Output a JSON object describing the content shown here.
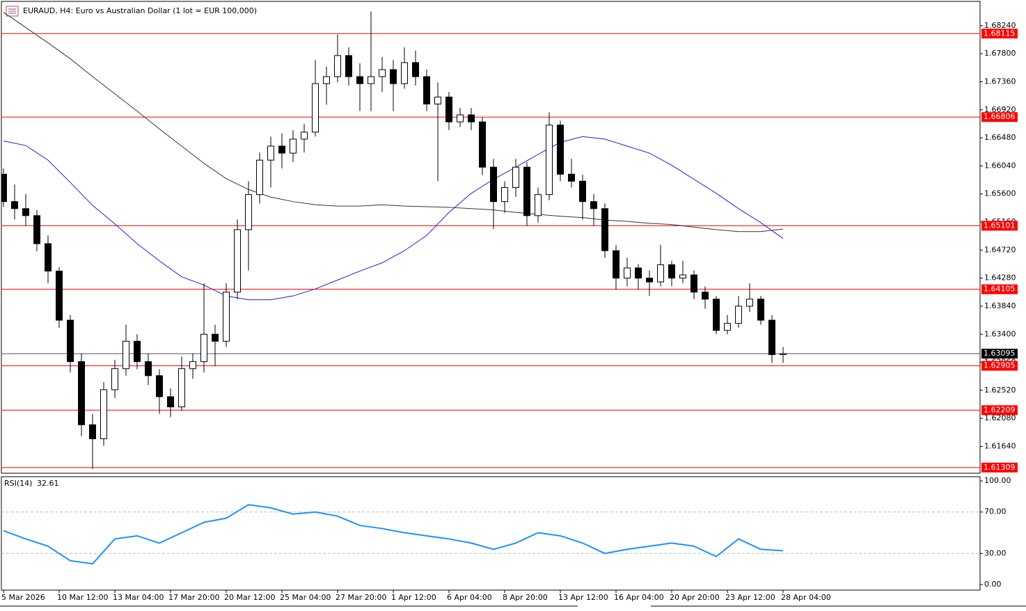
{
  "chart_data": {
    "type": "candlestick",
    "title": "EURAUD, H4:  Euro vs Australian Dollar (1 lot = EUR 100,000)",
    "ylim": [
      1.6122,
      1.6862
    ],
    "yticks": [
      {
        "value": 1.6824,
        "label": "1.68240"
      },
      {
        "value": 1.678,
        "label": "1.67800"
      },
      {
        "value": 1.6736,
        "label": "1.67360"
      },
      {
        "value": 1.6692,
        "label": "1.66920"
      },
      {
        "value": 1.6648,
        "label": "1.66480"
      },
      {
        "value": 1.6604,
        "label": "1.66040"
      },
      {
        "value": 1.656,
        "label": "1.65600"
      },
      {
        "value": 1.6516,
        "label": "1.65160"
      },
      {
        "value": 1.6472,
        "label": "1.64720"
      },
      {
        "value": 1.6428,
        "label": "1.64280"
      },
      {
        "value": 1.6384,
        "label": "1.63840"
      },
      {
        "value": 1.634,
        "label": "1.63400"
      },
      {
        "value": 1.6296,
        "label": "1.62960"
      },
      {
        "value": 1.6252,
        "label": "1.62520"
      },
      {
        "value": 1.6208,
        "label": "1.62080"
      },
      {
        "value": 1.6164,
        "label": "1.61640"
      }
    ],
    "xticks": [
      {
        "value": 0,
        "label": "5 Mar 2026"
      },
      {
        "value": 5,
        "label": "10 Mar 12:00"
      },
      {
        "value": 10,
        "label": "13 Mar 04:00"
      },
      {
        "value": 15,
        "label": "17 Mar 20:00"
      },
      {
        "value": 20,
        "label": "20 Mar 12:00"
      },
      {
        "value": 25,
        "label": "25 Mar 04:00"
      },
      {
        "value": 30,
        "label": "27 Mar 20:00"
      },
      {
        "value": 35,
        "label": "1 Apr 12:00"
      },
      {
        "value": 40,
        "label": "6 Apr 04:00"
      },
      {
        "value": 45,
        "label": "8 Apr 20:00"
      },
      {
        "value": 50,
        "label": "13 Apr 12:00"
      },
      {
        "value": 55,
        "label": "16 Apr 04:00"
      },
      {
        "value": 60,
        "label": "20 Apr 20:00"
      },
      {
        "value": 65,
        "label": "23 Apr 12:00"
      },
      {
        "value": 70,
        "label": "28 Apr 04:00"
      }
    ],
    "candles": [
      [
        1.6591,
        1.66,
        1.654,
        1.6548
      ],
      [
        1.6548,
        1.6575,
        1.652,
        1.6537
      ],
      [
        1.6537,
        1.656,
        1.651,
        1.6526
      ],
      [
        1.6526,
        1.6535,
        1.647,
        1.6482
      ],
      [
        1.6482,
        1.6495,
        1.642,
        1.6439
      ],
      [
        1.6439,
        1.6445,
        1.635,
        1.6362
      ],
      [
        1.6362,
        1.637,
        1.628,
        1.6297
      ],
      [
        1.6297,
        1.631,
        1.618,
        1.6198
      ],
      [
        1.6198,
        1.6215,
        1.6129,
        1.6176
      ],
      [
        1.6176,
        1.6265,
        1.6165,
        1.6253
      ],
      [
        1.6253,
        1.63,
        1.624,
        1.6286
      ],
      [
        1.6286,
        1.6355,
        1.6275,
        1.6329
      ],
      [
        1.6329,
        1.634,
        1.6285,
        1.6297
      ],
      [
        1.6297,
        1.631,
        1.626,
        1.6275
      ],
      [
        1.6275,
        1.6285,
        1.6215,
        1.6242
      ],
      [
        1.6242,
        1.6255,
        1.621,
        1.6226
      ],
      [
        1.6226,
        1.6305,
        1.622,
        1.6286
      ],
      [
        1.6286,
        1.631,
        1.627,
        1.6297
      ],
      [
        1.6297,
        1.642,
        1.628,
        1.634
      ],
      [
        1.634,
        1.6355,
        1.629,
        1.6329
      ],
      [
        1.6329,
        1.642,
        1.632,
        1.6406
      ],
      [
        1.6406,
        1.652,
        1.6395,
        1.6504
      ],
      [
        1.6504,
        1.658,
        1.644,
        1.6559
      ],
      [
        1.6559,
        1.6625,
        1.6545,
        1.6613
      ],
      [
        1.6613,
        1.665,
        1.657,
        1.6635
      ],
      [
        1.6635,
        1.6655,
        1.66,
        1.6624
      ],
      [
        1.6624,
        1.666,
        1.661,
        1.6646
      ],
      [
        1.6646,
        1.667,
        1.6625,
        1.6657
      ],
      [
        1.6657,
        1.677,
        1.665,
        1.6733
      ],
      [
        1.6733,
        1.676,
        1.67,
        1.6744
      ],
      [
        1.6744,
        1.681,
        1.6735,
        1.6777
      ],
      [
        1.6777,
        1.679,
        1.673,
        1.6744
      ],
      [
        1.6744,
        1.6765,
        1.669,
        1.6733
      ],
      [
        1.6733,
        1.6846,
        1.669,
        1.6744
      ],
      [
        1.6744,
        1.6775,
        1.672,
        1.6755
      ],
      [
        1.6755,
        1.677,
        1.669,
        1.6733
      ],
      [
        1.6733,
        1.679,
        1.6725,
        1.6766
      ],
      [
        1.6766,
        1.6785,
        1.673,
        1.6744
      ],
      [
        1.6744,
        1.6755,
        1.669,
        1.6701
      ],
      [
        1.6701,
        1.6735,
        1.658,
        1.6712
      ],
      [
        1.6712,
        1.672,
        1.666,
        1.6673
      ],
      [
        1.6673,
        1.6695,
        1.6665,
        1.6684
      ],
      [
        1.6684,
        1.6695,
        1.666,
        1.6673
      ],
      [
        1.6673,
        1.668,
        1.659,
        1.6602
      ],
      [
        1.6602,
        1.6615,
        1.6505,
        1.6548
      ],
      [
        1.6548,
        1.658,
        1.653,
        1.657
      ],
      [
        1.657,
        1.6615,
        1.6555,
        1.6602
      ],
      [
        1.6602,
        1.661,
        1.651,
        1.6526
      ],
      [
        1.6526,
        1.657,
        1.6515,
        1.6559
      ],
      [
        1.6559,
        1.6688,
        1.655,
        1.6668
      ],
      [
        1.6668,
        1.6675,
        1.658,
        1.6591
      ],
      [
        1.6591,
        1.6615,
        1.657,
        1.658
      ],
      [
        1.658,
        1.659,
        1.652,
        1.6548
      ],
      [
        1.6548,
        1.656,
        1.651,
        1.6537
      ],
      [
        1.6537,
        1.6545,
        1.646,
        1.6471
      ],
      [
        1.6471,
        1.648,
        1.641,
        1.6428
      ],
      [
        1.6428,
        1.646,
        1.6415,
        1.6444
      ],
      [
        1.6444,
        1.645,
        1.641,
        1.6428
      ],
      [
        1.6428,
        1.644,
        1.64,
        1.6422
      ],
      [
        1.6422,
        1.648,
        1.6415,
        1.6449
      ],
      [
        1.6449,
        1.6455,
        1.6415,
        1.6428
      ],
      [
        1.6428,
        1.6455,
        1.642,
        1.6433
      ],
      [
        1.6433,
        1.644,
        1.6395,
        1.6406
      ],
      [
        1.6406,
        1.6415,
        1.638,
        1.6395
      ],
      [
        1.6395,
        1.64,
        1.634,
        1.6346
      ],
      [
        1.6346,
        1.637,
        1.634,
        1.6357
      ],
      [
        1.6357,
        1.64,
        1.635,
        1.6384
      ],
      [
        1.6384,
        1.642,
        1.6375,
        1.6395
      ],
      [
        1.6395,
        1.64,
        1.6355,
        1.6362
      ],
      [
        1.6362,
        1.637,
        1.6295,
        1.6308
      ],
      [
        1.6308,
        1.632,
        1.6295,
        1.63095
      ]
    ],
    "line_x": [
      0,
      2,
      4,
      6,
      8,
      10,
      12,
      14,
      16,
      18,
      20,
      22,
      24,
      26,
      28,
      30,
      32,
      34,
      36,
      38,
      40,
      42,
      44,
      46,
      48,
      50,
      52,
      54,
      56,
      58,
      60,
      62,
      64,
      66,
      68,
      70
    ],
    "moving_averages": [
      {
        "color": "#1f1fd6",
        "values": [
          1.6643,
          1.6636,
          1.6613,
          1.6578,
          1.6542,
          1.6513,
          1.6482,
          1.6455,
          1.643,
          1.6417,
          1.64,
          1.6394,
          1.6394,
          1.64,
          1.6411,
          1.6425,
          1.6439,
          1.6452,
          1.6471,
          1.6495,
          1.6531,
          1.6561,
          1.6583,
          1.6602,
          1.6622,
          1.6641,
          1.665,
          1.6646,
          1.6635,
          1.6624,
          1.6605,
          1.6583,
          1.6561,
          1.6537,
          1.6515,
          1.649
        ]
      },
      {
        "color": "#333333",
        "values": [
          1.6845,
          1.6821,
          1.6797,
          1.6772,
          1.6744,
          1.6717,
          1.669,
          1.6662,
          1.6635,
          1.6608,
          1.6584,
          1.6567,
          1.6555,
          1.6548,
          1.6543,
          1.6541,
          1.6541,
          1.6543,
          1.6541,
          1.654,
          1.6539,
          1.6537,
          1.6535,
          1.6531,
          1.6528,
          1.6525,
          1.6523,
          1.6519,
          1.6517,
          1.6514,
          1.6512,
          1.6508,
          1.6504,
          1.6501,
          1.6501,
          1.6505
        ]
      }
    ],
    "levels": {
      "color": "#ff0000",
      "values": [
        1.68115,
        1.66806,
        1.65101,
        1.64105,
        1.62905,
        1.62209,
        1.61309
      ]
    },
    "current_price": 1.63095,
    "rsi": {
      "label": "RSI(14)",
      "value": 32.61,
      "color": "#1e90ff",
      "ylim": [
        -5.4,
        103.4
      ],
      "yticks": [
        {
          "value": 100,
          "label": "100.00"
        },
        {
          "value": 70,
          "label": "70.00"
        },
        {
          "value": 30,
          "label": "30.00"
        },
        {
          "value": 0,
          "label": "0.00"
        }
      ],
      "levels": [
        70,
        30
      ],
      "values": [
        52,
        44,
        37,
        23,
        20,
        44,
        47,
        40,
        50,
        60,
        64,
        77,
        74,
        68,
        70,
        66,
        57,
        54,
        50,
        47,
        44,
        40,
        34,
        40,
        50,
        47,
        40,
        30,
        34,
        37,
        40,
        37,
        27,
        44,
        34,
        32.61
      ]
    }
  }
}
